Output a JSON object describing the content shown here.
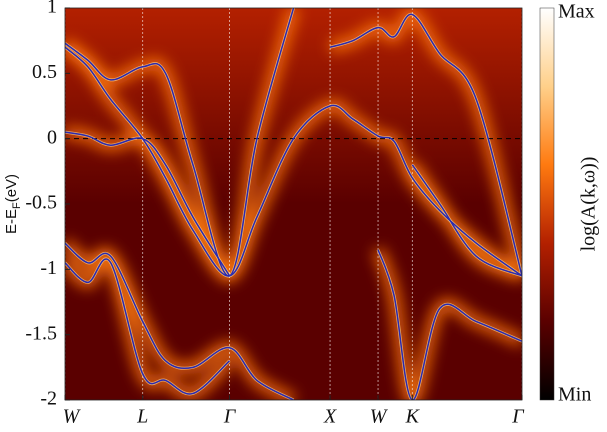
{
  "chart_data": {
    "type": "band_structure",
    "ylabel": [
      "E-E",
      "F",
      "(eV)"
    ],
    "colorbar_label": "log(A(k,ω))",
    "colorbar_labels": [
      "Max",
      "Min"
    ],
    "colormap": [
      "#000000",
      "#5a0000",
      "#b32000",
      "#ff7a10",
      "#ffd08a",
      "#ffffff"
    ],
    "band_color": "#2a2ab0",
    "xlim": [
      0,
      1
    ],
    "xticks": [
      {
        "value": 0,
        "label": "W"
      },
      {
        "value": 0.17,
        "label": "L"
      },
      {
        "value": 0.36,
        "label": "Γ"
      },
      {
        "value": 0.58,
        "label": "X"
      },
      {
        "value": 0.685,
        "label": "W"
      },
      {
        "value": 0.76,
        "label": "K"
      },
      {
        "value": 1,
        "label": "Γ"
      }
    ],
    "ylim": [
      -2,
      1
    ],
    "yticks": [
      -2,
      -1.5,
      -1,
      -0.5,
      0,
      0.5,
      1
    ],
    "fermi_level": 0,
    "x": [
      0,
      0.05,
      0.1,
      0.17,
      0.22,
      0.28,
      0.36,
      0.42,
      0.5,
      0.58,
      0.63,
      0.685,
      0.72,
      0.76,
      0.82,
      0.9,
      1
    ],
    "series": [
      {
        "values": [
          0.7,
          0.55,
          0.3,
          0.0,
          -0.3,
          -0.7,
          -1.05,
          -0.6,
          0.0,
          0.25,
          0.15,
          0.02,
          -0.02,
          -0.3,
          -0.55,
          -0.8,
          -1.05
        ]
      },
      {
        "values": [
          0.73,
          0.6,
          0.45,
          0.55,
          0.5,
          -0.2,
          -1.05,
          0.0,
          1.0,
          null,
          null,
          null,
          null,
          null,
          null,
          null,
          null
        ]
      },
      {
        "values": [
          null,
          null,
          null,
          null,
          null,
          null,
          null,
          null,
          null,
          0.7,
          0.75,
          0.85,
          0.78,
          0.95,
          0.65,
          0.3,
          -1.05
        ]
      },
      {
        "values": [
          0.05,
          0.02,
          -0.05,
          0.0,
          -0.2,
          -0.6,
          -1.05,
          null,
          null,
          null,
          null,
          null,
          null,
          null,
          null,
          null,
          null
        ]
      },
      {
        "values": [
          -0.8,
          -0.95,
          -0.9,
          -1.4,
          -1.7,
          -1.75,
          -1.6,
          -1.85,
          -2.0,
          null,
          null,
          -0.85,
          -1.2,
          -2.0,
          -1.3,
          -1.4,
          -1.55
        ]
      },
      {
        "values": [
          -0.95,
          -1.1,
          -0.95,
          -1.8,
          -1.85,
          -1.95,
          -1.7,
          null,
          null,
          null,
          null,
          null,
          null,
          -0.2,
          -0.5,
          -0.9,
          -1.05
        ]
      }
    ]
  }
}
